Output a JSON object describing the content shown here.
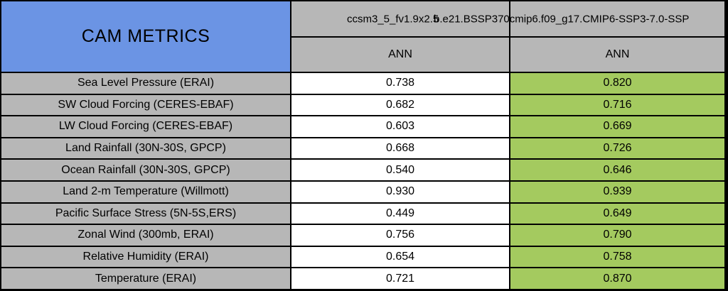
{
  "table": {
    "title": "CAM METRICS",
    "columns": [
      {
        "model_run": "ccsm3_5_fv1.9x2.5",
        "season": "ANN"
      },
      {
        "model_run": "b.e21.BSSP370cmip6.f09_g17.CMIP6-SSP3-7.0-SSP",
        "season": "ANN"
      }
    ],
    "rows": [
      {
        "metric": "Sea Level Pressure (ERAI)",
        "values": [
          "0.738",
          "0.820"
        ]
      },
      {
        "metric": "SW Cloud Forcing (CERES-EBAF)",
        "values": [
          "0.682",
          "0.716"
        ]
      },
      {
        "metric": "LW Cloud Forcing (CERES-EBAF)",
        "values": [
          "0.603",
          "0.669"
        ]
      },
      {
        "metric": "Land Rainfall (30N-30S, GPCP)",
        "values": [
          "0.668",
          "0.726"
        ]
      },
      {
        "metric": "Ocean Rainfall (30N-30S, GPCP)",
        "values": [
          "0.540",
          "0.646"
        ]
      },
      {
        "metric": "Land 2-m Temperature (Willmott)",
        "values": [
          "0.930",
          "0.939"
        ]
      },
      {
        "metric": "Pacific Surface Stress (5N-5S,ERS)",
        "values": [
          "0.449",
          "0.649"
        ]
      },
      {
        "metric": "Zonal Wind (300mb, ERAI)",
        "values": [
          "0.756",
          "0.790"
        ]
      },
      {
        "metric": "Relative Humidity (ERAI)",
        "values": [
          "0.654",
          "0.758"
        ]
      },
      {
        "metric": "Temperature (ERAI)",
        "values": [
          "0.721",
          "0.870"
        ]
      }
    ],
    "colors": {
      "title_bg": "#6b94e4",
      "header_bg": "#b7b7b7",
      "metric_bg": "#b7b7b7",
      "run1_bg": "#ffffff",
      "run2_bg": "#a4ca5f",
      "grid": "#000000"
    }
  }
}
